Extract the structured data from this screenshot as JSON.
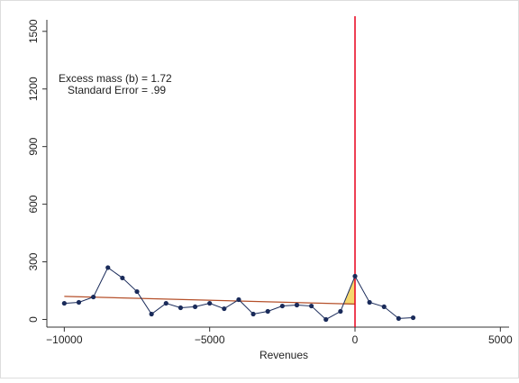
{
  "chart_data": {
    "type": "line",
    "x_label": "Revenues",
    "annotations": [
      "Excess mass (b) = 1.72",
      "Standard Error = .99"
    ],
    "x": [
      -10000,
      -9500,
      -9000,
      -8500,
      -8000,
      -7500,
      -7000,
      -6500,
      -6000,
      -5500,
      -5000,
      -4500,
      -4000,
      -3500,
      -3000,
      -2500,
      -2000,
      -1500,
      -1000,
      -500,
      0,
      500,
      1000,
      1500,
      2000
    ],
    "series": [
      {
        "color": "#1a2b5a",
        "values": [
          84,
          89,
          117,
          270,
          216,
          145,
          28,
          84,
          61,
          66,
          84,
          56,
          103,
          28,
          42,
          70,
          75,
          70,
          0,
          42,
          225,
          89,
          66,
          5,
          9
        ]
      }
    ],
    "fit_line": {
      "color": "#b5502a",
      "x": [
        -10000,
        0
      ],
      "values": [
        120,
        80
      ]
    },
    "excess_color": "#f5d76e",
    "threshold": {
      "x": 0,
      "color": "#e8001c"
    },
    "xlim": [
      -10600,
      5300
    ],
    "xticks": [
      {
        "value": -10000,
        "label": "−10000"
      },
      {
        "value": -5000,
        "label": "−5000"
      },
      0,
      5000
    ],
    "ylim": [
      -40,
      1560
    ],
    "yticks": [
      0,
      300,
      600,
      900,
      1200,
      1500
    ]
  }
}
